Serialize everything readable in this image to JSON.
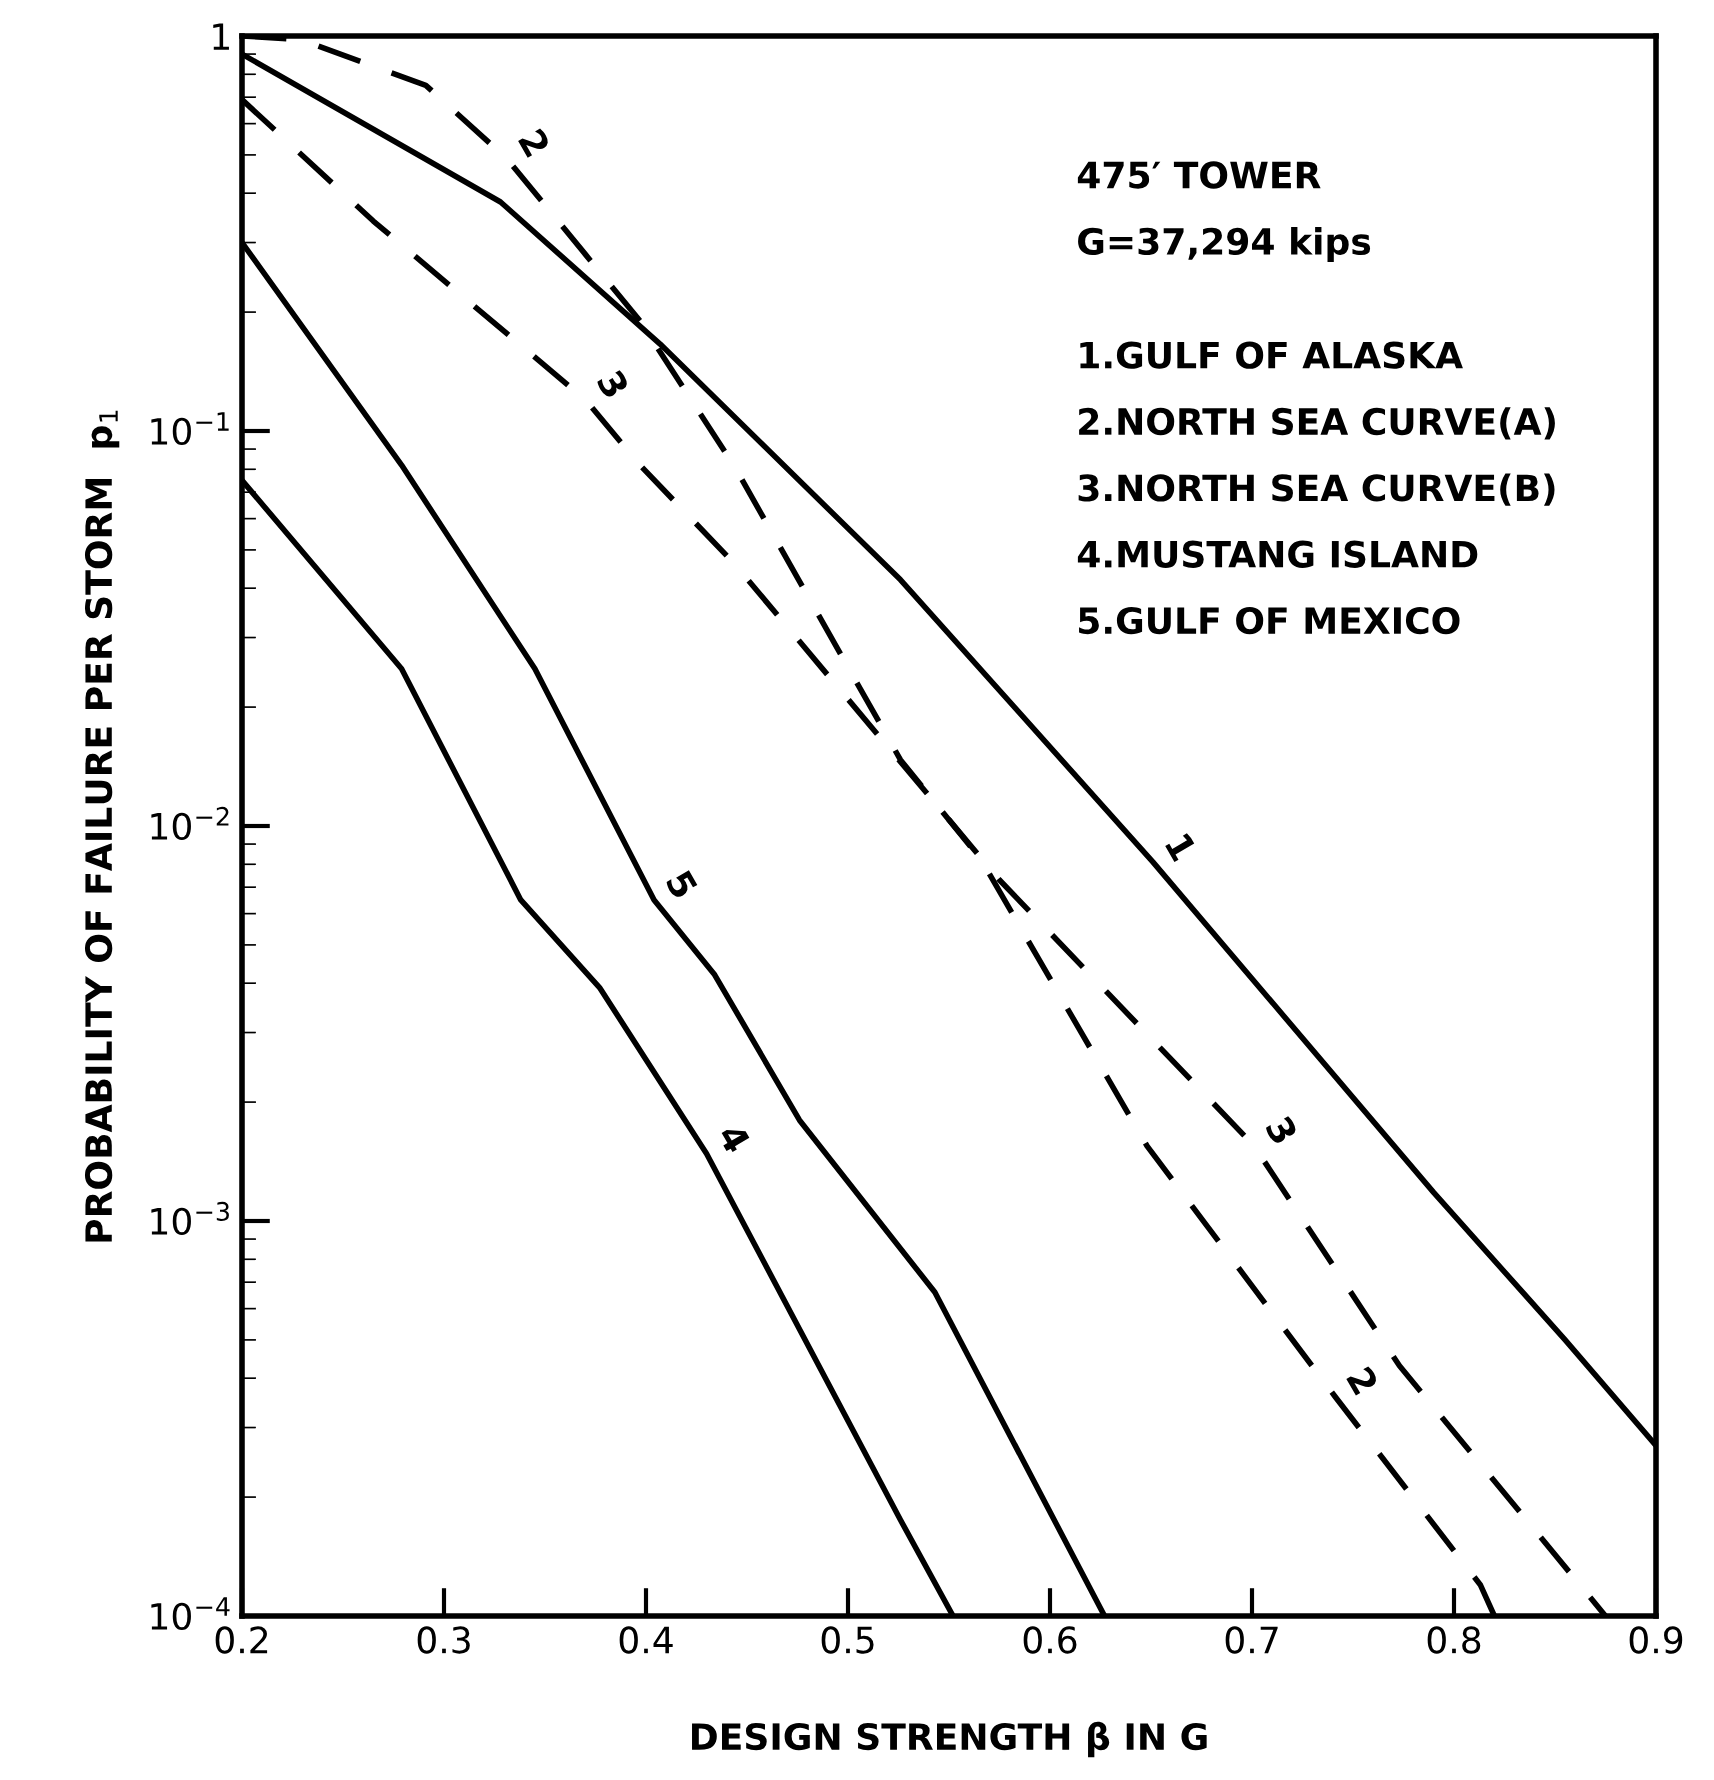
{
  "chart_data": {
    "type": "line",
    "xlabel": "DESIGN STRENGTH β IN G",
    "ylabel": "PROBABILITY OF FAILURE PER STORM  p$_{1}$",
    "log": "y",
    "grid": false,
    "legend": false,
    "marker": "none",
    "xlim": [
      0.2,
      0.9
    ],
    "xticks": [
      0.2,
      0.3,
      0.4,
      0.5,
      0.6,
      0.7,
      0.8,
      0.9
    ],
    "ylim": [
      0.0001,
      1
    ],
    "yticks": [
      {
        "value": 1,
        "label": "1"
      },
      {
        "value": 0.1,
        "label": "10$^{−1}$"
      },
      {
        "value": 0.01,
        "label": "10$^{−2}$"
      },
      {
        "value": 0.001,
        "label": "10$^{−3}$"
      },
      {
        "value": 0.0001,
        "label": "10$^{−4}$"
      }
    ],
    "series": [
      {
        "color": "#000000",
        "line_style": "solid",
        "x": [
          0.2,
          0.328,
          0.407,
          0.526,
          0.651,
          0.79,
          0.855,
          0.9
        ],
        "values": [
          0.9,
          0.38,
          0.166,
          0.042,
          0.0081,
          0.00118,
          0.0005,
          0.00027
        ]
      },
      {
        "color": "#000000",
        "line_style": "dashed",
        "x": [
          0.2,
          0.229,
          0.291,
          0.331,
          0.37,
          0.397,
          0.444,
          0.526,
          0.566,
          0.648,
          0.741,
          0.813,
          0.82
        ],
        "values": [
          1,
          0.98,
          0.75,
          0.49,
          0.28,
          0.19,
          0.081,
          0.0147,
          0.0082,
          0.00155,
          0.00036,
          0.00012,
          0.0001
        ]
      },
      {
        "color": "#000000",
        "line_style": "dashed",
        "x": [
          0.2,
          0.265,
          0.37,
          0.397,
          0.444,
          0.575,
          0.701,
          0.773,
          0.875
        ],
        "values": [
          0.69,
          0.34,
          0.12,
          0.082,
          0.046,
          0.0073,
          0.00155,
          0.00043,
          0.0001
        ]
      },
      {
        "color": "#000000",
        "line_style": "solid",
        "x": [
          0.2,
          0.279,
          0.338,
          0.377,
          0.43,
          0.526,
          0.552
        ],
        "values": [
          0.075,
          0.025,
          0.0065,
          0.0039,
          0.00148,
          0.000175,
          0.0001
        ]
      },
      {
        "color": "#000000",
        "line_style": "solid",
        "x": [
          0.2,
          0.279,
          0.345,
          0.404,
          0.434,
          0.476,
          0.543,
          0.627
        ],
        "values": [
          0.3,
          0.082,
          0.025,
          0.0065,
          0.0042,
          0.0018,
          0.00066,
          0.0001
        ]
      }
    ],
    "annotations": [
      "475′ TOWER",
      "G=37,294 kips",
      "1.GULF OF ALASKA",
      "2.NORTH SEA CURVE(A)",
      "3.NORTH SEA CURVE(B)",
      "4.MUSTANG ISLAND",
      "5.GULF OF MEXICO",
      {
        "text": "1",
        "x": 0.651,
        "y": 0.0081
      },
      {
        "text": "2",
        "x": 0.331,
        "y": 0.49
      },
      {
        "text": "3",
        "x": 0.37,
        "y": 0.12
      },
      {
        "text": "5",
        "x": 0.404,
        "y": 0.0065
      },
      {
        "text": "4",
        "x": 0.43,
        "y": 0.00148
      },
      {
        "text": "3",
        "x": 0.701,
        "y": 0.00155
      },
      {
        "text": "2",
        "x": 0.741,
        "y": 0.00036
      }
    ]
  }
}
